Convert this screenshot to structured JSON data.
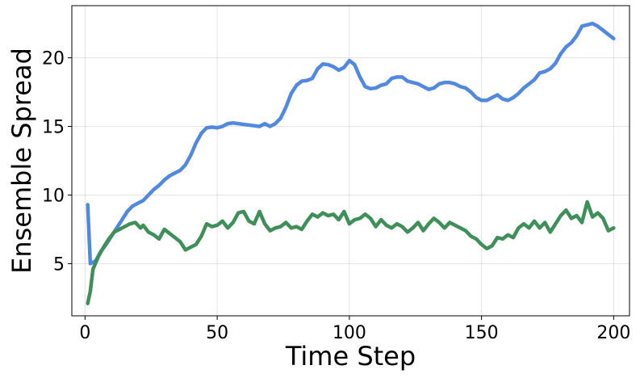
{
  "chart_data": {
    "type": "line",
    "title": "",
    "xlabel": "Time Step",
    "ylabel": "Ensemble Spread",
    "xlim": [
      -5,
      206
    ],
    "ylim": [
      1.2,
      23.8
    ],
    "xticks": [
      0,
      50,
      100,
      150,
      200
    ],
    "yticks": [
      5,
      10,
      15,
      20
    ],
    "grid": true,
    "legend": "none",
    "series": [
      {
        "color": "#5289e0",
        "points": [
          [
            1,
            9.3
          ],
          [
            2,
            5.0
          ],
          [
            4,
            5.2
          ],
          [
            6,
            5.9
          ],
          [
            8,
            6.4
          ],
          [
            10,
            7.0
          ],
          [
            12,
            7.6
          ],
          [
            14,
            8.2
          ],
          [
            16,
            8.8
          ],
          [
            18,
            9.2
          ],
          [
            20,
            9.4
          ],
          [
            22,
            9.6
          ],
          [
            24,
            10.0
          ],
          [
            26,
            10.4
          ],
          [
            28,
            10.7
          ],
          [
            30,
            11.1
          ],
          [
            32,
            11.4
          ],
          [
            34,
            11.6
          ],
          [
            36,
            11.8
          ],
          [
            38,
            12.2
          ],
          [
            40,
            12.9
          ],
          [
            42,
            13.8
          ],
          [
            44,
            14.5
          ],
          [
            46,
            14.9
          ],
          [
            48,
            14.95
          ],
          [
            50,
            14.9
          ],
          [
            52,
            15.0
          ],
          [
            54,
            15.2
          ],
          [
            56,
            15.25
          ],
          [
            58,
            15.2
          ],
          [
            60,
            15.15
          ],
          [
            62,
            15.1
          ],
          [
            64,
            15.05
          ],
          [
            66,
            15.0
          ],
          [
            68,
            15.2
          ],
          [
            70,
            15.0
          ],
          [
            72,
            15.2
          ],
          [
            74,
            15.6
          ],
          [
            76,
            16.4
          ],
          [
            78,
            17.4
          ],
          [
            80,
            18.0
          ],
          [
            82,
            18.3
          ],
          [
            84,
            18.35
          ],
          [
            86,
            18.5
          ],
          [
            88,
            19.2
          ],
          [
            90,
            19.55
          ],
          [
            92,
            19.5
          ],
          [
            94,
            19.35
          ],
          [
            96,
            19.1
          ],
          [
            98,
            19.3
          ],
          [
            100,
            19.8
          ],
          [
            102,
            19.5
          ],
          [
            104,
            18.6
          ],
          [
            106,
            17.9
          ],
          [
            108,
            17.75
          ],
          [
            110,
            17.8
          ],
          [
            112,
            18.0
          ],
          [
            114,
            18.1
          ],
          [
            116,
            18.5
          ],
          [
            118,
            18.6
          ],
          [
            120,
            18.6
          ],
          [
            122,
            18.3
          ],
          [
            124,
            18.2
          ],
          [
            126,
            18.1
          ],
          [
            128,
            17.9
          ],
          [
            130,
            17.7
          ],
          [
            132,
            17.8
          ],
          [
            134,
            18.1
          ],
          [
            136,
            18.2
          ],
          [
            138,
            18.2
          ],
          [
            140,
            18.1
          ],
          [
            142,
            17.9
          ],
          [
            144,
            17.8
          ],
          [
            146,
            17.5
          ],
          [
            148,
            17.1
          ],
          [
            150,
            16.9
          ],
          [
            152,
            16.9
          ],
          [
            154,
            17.1
          ],
          [
            156,
            17.3
          ],
          [
            158,
            17.0
          ],
          [
            160,
            16.9
          ],
          [
            162,
            17.1
          ],
          [
            164,
            17.4
          ],
          [
            166,
            17.8
          ],
          [
            168,
            18.1
          ],
          [
            170,
            18.4
          ],
          [
            172,
            18.9
          ],
          [
            174,
            19.0
          ],
          [
            176,
            19.2
          ],
          [
            178,
            19.6
          ],
          [
            180,
            20.3
          ],
          [
            182,
            20.8
          ],
          [
            184,
            21.1
          ],
          [
            186,
            21.6
          ],
          [
            188,
            22.3
          ],
          [
            190,
            22.4
          ],
          [
            192,
            22.5
          ],
          [
            194,
            22.3
          ],
          [
            196,
            22.0
          ],
          [
            198,
            21.7
          ],
          [
            200,
            21.4
          ]
        ]
      },
      {
        "color": "#3f8f59",
        "points": [
          [
            1,
            2.1
          ],
          [
            2,
            3.0
          ],
          [
            3,
            4.6
          ],
          [
            5,
            5.5
          ],
          [
            7,
            6.2
          ],
          [
            9,
            6.8
          ],
          [
            11,
            7.3
          ],
          [
            13,
            7.5
          ],
          [
            15,
            7.7
          ],
          [
            17,
            7.9
          ],
          [
            19,
            8.0
          ],
          [
            21,
            7.6
          ],
          [
            22,
            7.8
          ],
          [
            24,
            7.3
          ],
          [
            26,
            7.1
          ],
          [
            28,
            6.8
          ],
          [
            30,
            7.5
          ],
          [
            32,
            7.2
          ],
          [
            34,
            6.9
          ],
          [
            36,
            6.6
          ],
          [
            38,
            6.0
          ],
          [
            40,
            6.2
          ],
          [
            42,
            6.4
          ],
          [
            44,
            7.0
          ],
          [
            46,
            7.9
          ],
          [
            48,
            7.7
          ],
          [
            50,
            7.8
          ],
          [
            52,
            8.1
          ],
          [
            54,
            7.6
          ],
          [
            56,
            8.0
          ],
          [
            58,
            8.7
          ],
          [
            60,
            8.8
          ],
          [
            62,
            8.1
          ],
          [
            64,
            7.9
          ],
          [
            66,
            8.8
          ],
          [
            68,
            7.9
          ],
          [
            70,
            7.4
          ],
          [
            72,
            7.6
          ],
          [
            74,
            7.7
          ],
          [
            76,
            8.0
          ],
          [
            78,
            7.6
          ],
          [
            80,
            7.7
          ],
          [
            82,
            7.5
          ],
          [
            84,
            8.1
          ],
          [
            86,
            8.6
          ],
          [
            88,
            8.4
          ],
          [
            90,
            8.7
          ],
          [
            92,
            8.5
          ],
          [
            94,
            8.6
          ],
          [
            96,
            8.2
          ],
          [
            98,
            8.8
          ],
          [
            100,
            7.9
          ],
          [
            102,
            8.2
          ],
          [
            104,
            8.3
          ],
          [
            106,
            8.6
          ],
          [
            108,
            8.3
          ],
          [
            110,
            7.7
          ],
          [
            112,
            8.2
          ],
          [
            114,
            7.8
          ],
          [
            116,
            7.6
          ],
          [
            118,
            7.9
          ],
          [
            120,
            7.7
          ],
          [
            122,
            7.3
          ],
          [
            124,
            7.6
          ],
          [
            126,
            8.0
          ],
          [
            128,
            7.4
          ],
          [
            130,
            7.9
          ],
          [
            132,
            8.3
          ],
          [
            134,
            8.0
          ],
          [
            136,
            7.6
          ],
          [
            138,
            8.0
          ],
          [
            140,
            7.8
          ],
          [
            142,
            7.6
          ],
          [
            144,
            7.4
          ],
          [
            146,
            7.0
          ],
          [
            148,
            6.8
          ],
          [
            150,
            6.4
          ],
          [
            152,
            6.1
          ],
          [
            154,
            6.3
          ],
          [
            156,
            6.9
          ],
          [
            158,
            6.8
          ],
          [
            160,
            7.1
          ],
          [
            162,
            6.9
          ],
          [
            164,
            7.6
          ],
          [
            166,
            7.9
          ],
          [
            168,
            7.6
          ],
          [
            170,
            8.1
          ],
          [
            172,
            7.6
          ],
          [
            174,
            8.0
          ],
          [
            176,
            7.3
          ],
          [
            178,
            7.9
          ],
          [
            180,
            8.5
          ],
          [
            182,
            8.9
          ],
          [
            184,
            8.3
          ],
          [
            186,
            8.5
          ],
          [
            188,
            8.0
          ],
          [
            190,
            9.5
          ],
          [
            192,
            8.4
          ],
          [
            194,
            8.7
          ],
          [
            196,
            8.3
          ],
          [
            198,
            7.4
          ],
          [
            200,
            7.6
          ]
        ]
      }
    ]
  }
}
